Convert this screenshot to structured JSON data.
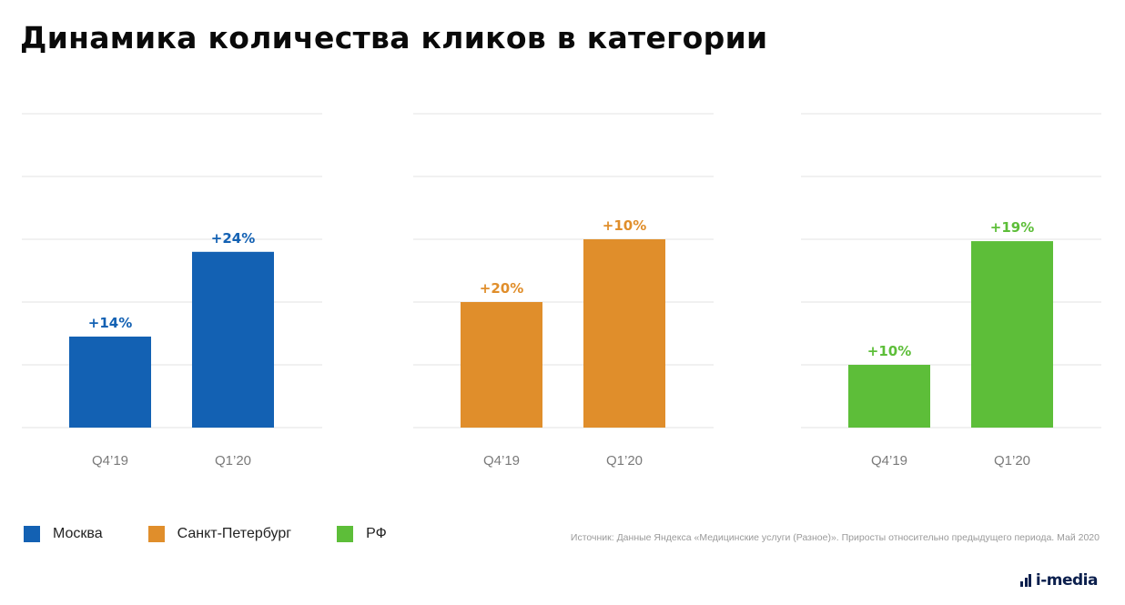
{
  "title": "Динамика количества кликов в категории",
  "chart_data": [
    {
      "type": "bar",
      "series_name": "Москва",
      "color": "#1361B3",
      "categories": [
        "Q4’19",
        "Q1’20"
      ],
      "values": [
        1.45,
        2.8
      ],
      "labels": [
        "+14%",
        "+24%"
      ],
      "ylim": [
        0,
        5
      ],
      "grid": true
    },
    {
      "type": "bar",
      "series_name": "Санкт-Петербург",
      "color": "#E08E2B",
      "categories": [
        "Q4’19",
        "Q1’20"
      ],
      "values": [
        2.0,
        3.0
      ],
      "labels": [
        "+20%",
        "+10%"
      ],
      "ylim": [
        0,
        5
      ],
      "grid": true
    },
    {
      "type": "bar",
      "series_name": "РФ",
      "color": "#5DBE39",
      "categories": [
        "Q4’19",
        "Q1’20"
      ],
      "values": [
        1.0,
        2.97
      ],
      "labels": [
        "+10%",
        "+19%"
      ],
      "ylim": [
        0,
        5
      ],
      "grid": true
    }
  ],
  "legend": [
    {
      "label": "Москва",
      "color": "#1361B3"
    },
    {
      "label": "Санкт-Петербург",
      "color": "#E08E2B"
    },
    {
      "label": "РФ",
      "color": "#5DBE39"
    }
  ],
  "source": "Источник: Данные Яндекса «Медицинские услуги (Разное)». Приросты относительно предыдущего периода. Май 2020",
  "logo": {
    "text": "i-media",
    "icon": "bars-logo-icon"
  }
}
